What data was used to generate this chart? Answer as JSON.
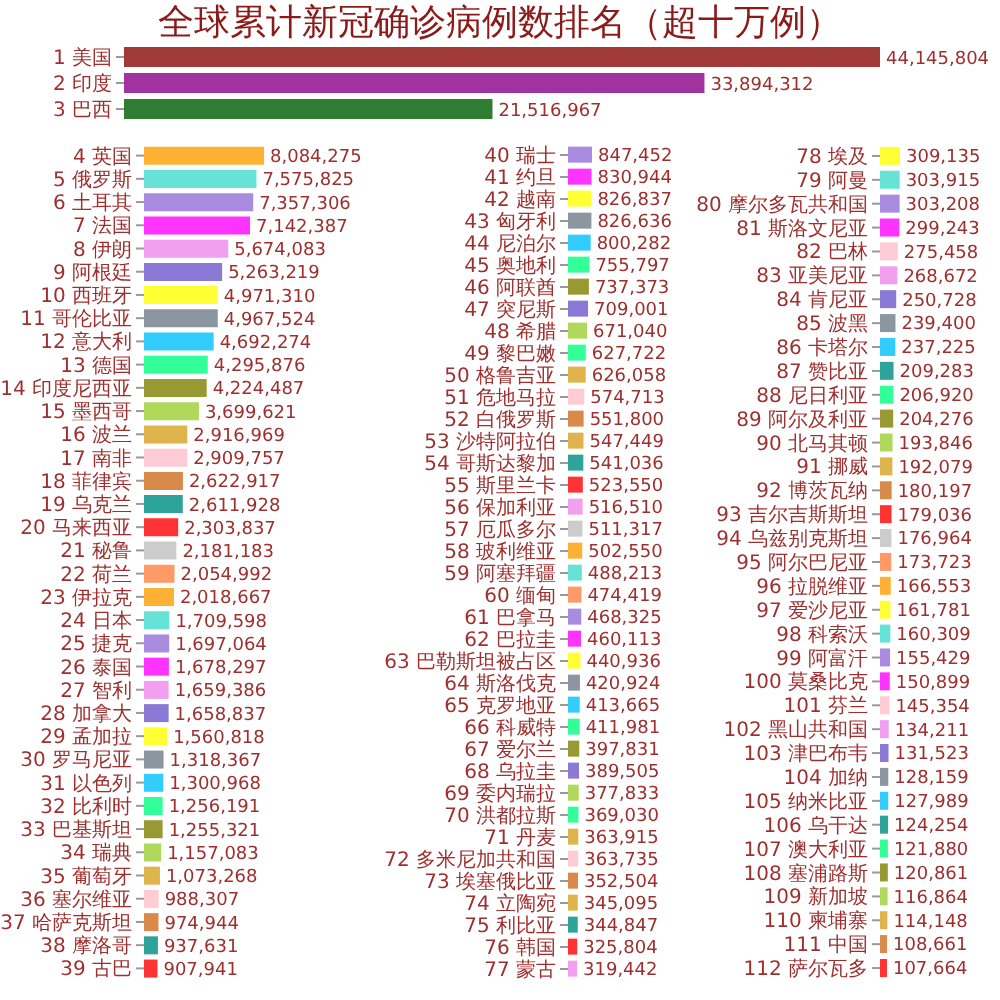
{
  "chart_data": [
    {
      "type": "bar",
      "orientation": "horizontal",
      "title": "全球累计新冠确诊病例数排名（超十万例）",
      "tick_labels": "y",
      "categories": [
        "1 美国",
        "2 印度",
        "3 巴西"
      ],
      "values": [
        44145804,
        33894312,
        21516967
      ],
      "value_labels": [
        "44,145,804",
        "33,894,312",
        "21,516,967"
      ],
      "colors": [
        "#a33a3a",
        "#a033a0",
        "#2e7d32"
      ]
    },
    {
      "type": "bar",
      "orientation": "horizontal",
      "tick_labels": "y",
      "categories": [
        "4 英国",
        "5 俄罗斯",
        "6 土耳其",
        "7 法国",
        "8 伊朗",
        "9 阿根廷",
        "10 西班牙",
        "11 哥伦比亚",
        "12 意大利",
        "13 德国",
        "14 印度尼西亚",
        "15 墨西哥",
        "16 波兰",
        "17 南非",
        "18 菲律宾",
        "19 乌克兰",
        "20 马来西亚",
        "21 秘鲁",
        "22 荷兰",
        "23 伊拉克",
        "24 日本",
        "25 捷克",
        "26 泰国",
        "27 智利",
        "28 加拿大",
        "29 孟加拉",
        "30 罗马尼亚",
        "31 以色列",
        "32 比利时",
        "33 巴基斯坦",
        "34 瑞典",
        "35 葡萄牙",
        "36 塞尔维亚",
        "37 哈萨克斯坦",
        "38 摩洛哥",
        "39 古巴"
      ],
      "values": [
        8084275,
        7575825,
        7357306,
        7142387,
        5674083,
        5263219,
        4971310,
        4967524,
        4692274,
        4295876,
        4224487,
        3699621,
        2916969,
        2909757,
        2622917,
        2611928,
        2303837,
        2181183,
        2054992,
        2018667,
        1709598,
        1697064,
        1678297,
        1659386,
        1658837,
        1560818,
        1318367,
        1300968,
        1256191,
        1255321,
        1157083,
        1073268,
        988307,
        974944,
        937631,
        907941
      ],
      "value_labels": [
        "8,084,275",
        "7,575,825",
        "7,357,306",
        "7,142,387",
        "5,674,083",
        "5,263,219",
        "4,971,310",
        "4,967,524",
        "4,692,274",
        "4,295,876",
        "4,224,487",
        "3,699,621",
        "2,916,969",
        "2,909,757",
        "2,622,917",
        "2,611,928",
        "2,303,837",
        "2,181,183",
        "2,054,992",
        "2,018,667",
        "1,709,598",
        "1,697,064",
        "1,678,297",
        "1,659,386",
        "1,658,837",
        "1,560,818",
        "1,318,367",
        "1,300,968",
        "1,256,191",
        "1,255,321",
        "1,157,083",
        "1,073,268",
        "988,307",
        "974,944",
        "937,631",
        "907,941"
      ],
      "colors": [
        "#ffb133",
        "#66e3d6",
        "#a98be0",
        "#ff33ff",
        "#f29ff0",
        "#8a7ad6",
        "#ffff33",
        "#8c96a0",
        "#33ccff",
        "#33ff99",
        "#999933",
        "#b0d85a",
        "#e0b44c",
        "#ffccd5",
        "#d98a4a",
        "#2ea39a",
        "#ff3333",
        "#cccccc",
        "#ff9966",
        "#ffb133",
        "#66e3d6",
        "#a98be0",
        "#ff33ff",
        "#f29ff0",
        "#8a7ad6",
        "#ffff33",
        "#8c96a0",
        "#33ccff",
        "#33ff99",
        "#999933",
        "#b0d85a",
        "#e0b44c",
        "#ffccd5",
        "#d98a4a",
        "#2ea39a",
        "#ff3333"
      ]
    },
    {
      "type": "bar",
      "orientation": "horizontal",
      "tick_labels": "y",
      "categories": [
        "40 瑞士",
        "41 约旦",
        "42 越南",
        "43 匈牙利",
        "44 尼泊尔",
        "45 奥地利",
        "46 阿联酋",
        "47 突尼斯",
        "48 希腊",
        "49 黎巴嫩",
        "50 格鲁吉亚",
        "51 危地马拉",
        "52 白俄罗斯",
        "53 沙特阿拉伯",
        "54 哥斯达黎加",
        "55 斯里兰卡",
        "56 保加利亚",
        "57 厄瓜多尔",
        "58 玻利维亚",
        "59 阿塞拜疆",
        "60 缅甸",
        "61 巴拿马",
        "62 巴拉圭",
        "63 巴勒斯坦被占区",
        "64 斯洛伐克",
        "65 克罗地亚",
        "66 科威特",
        "67 爱尔兰",
        "68 乌拉圭",
        "69 委内瑞拉",
        "70 洪都拉斯",
        "71 丹麦",
        "72 多米尼加共和国",
        "73 埃塞俄比亚",
        "74 立陶宛",
        "75 利比亚",
        "76 韩国",
        "77 蒙古"
      ],
      "values": [
        847452,
        830944,
        826837,
        826636,
        800282,
        755797,
        737373,
        709001,
        671040,
        627722,
        626058,
        574713,
        551800,
        547449,
        541036,
        523550,
        516510,
        511317,
        502550,
        488213,
        474419,
        468325,
        460113,
        440936,
        420924,
        413665,
        411981,
        397831,
        389505,
        377833,
        369030,
        363915,
        363735,
        352504,
        345095,
        344847,
        325804,
        319442
      ],
      "value_labels": [
        "847,452",
        "830,944",
        "826,837",
        "826,636",
        "800,282",
        "755,797",
        "737,373",
        "709,001",
        "671,040",
        "627,722",
        "626,058",
        "574,713",
        "551,800",
        "547,449",
        "541,036",
        "523,550",
        "516,510",
        "511,317",
        "502,550",
        "488,213",
        "474,419",
        "468,325",
        "460,113",
        "440,936",
        "420,924",
        "413,665",
        "411,981",
        "397,831",
        "389,505",
        "377,833",
        "369,030",
        "363,915",
        "363,735",
        "352,504",
        "345,095",
        "344,847",
        "325,804",
        "319,442"
      ],
      "colors": [
        "#a98be0",
        "#ff33ff",
        "#ffff33",
        "#8c96a0",
        "#33ccff",
        "#33ff99",
        "#999933",
        "#8a7ad6",
        "#b0d85a",
        "#33ff99",
        "#e0b44c",
        "#ffccd5",
        "#d98a4a",
        "#e0b44c",
        "#2ea39a",
        "#ff3333",
        "#f29ff0",
        "#cccccc",
        "#ffb133",
        "#66e3d6",
        "#ff9966",
        "#a98be0",
        "#ff33ff",
        "#ffff33",
        "#8c96a0",
        "#33ccff",
        "#33ff99",
        "#999933",
        "#8a7ad6",
        "#b0d85a",
        "#33ff99",
        "#e0b44c",
        "#ffccd5",
        "#d98a4a",
        "#e0b44c",
        "#2ea39a",
        "#ff3333",
        "#f29ff0"
      ]
    },
    {
      "type": "bar",
      "orientation": "horizontal",
      "tick_labels": "y",
      "categories": [
        "78 埃及",
        "79 阿曼",
        "80 摩尔多瓦共和国",
        "81 斯洛文尼亚",
        "82 巴林",
        "83 亚美尼亚",
        "84 肯尼亚",
        "85 波黑",
        "86 卡塔尔",
        "87 赞比亚",
        "88 尼日利亚",
        "89 阿尔及利亚",
        "90 北马其顿",
        "91 挪威",
        "92 博茨瓦纳",
        "93 吉尔吉斯斯坦",
        "94 乌兹别克斯坦",
        "95 阿尔巴尼亚",
        "96 拉脱维亚",
        "97 爱沙尼亚",
        "98 科索沃",
        "99 阿富汗",
        "100 莫桑比克",
        "101 芬兰",
        "102 黑山共和国",
        "103 津巴布韦",
        "104 加纳",
        "105 纳米比亚",
        "106 乌干达",
        "107 澳大利亚",
        "108 塞浦路斯",
        "109 新加坡",
        "110 柬埔寨",
        "111 中国",
        "112 萨尔瓦多"
      ],
      "values": [
        309135,
        303915,
        303208,
        299243,
        275458,
        268672,
        250728,
        239400,
        237225,
        209283,
        206920,
        204276,
        193846,
        192079,
        180197,
        179036,
        176964,
        173723,
        166553,
        161781,
        160309,
        155429,
        150899,
        145354,
        134211,
        131523,
        128159,
        127989,
        124254,
        121880,
        120861,
        116864,
        114148,
        108661,
        107664
      ],
      "value_labels": [
        "309,135",
        "303,915",
        "303,208",
        "299,243",
        "275,458",
        "268,672",
        "250,728",
        "239,400",
        "237,225",
        "209,283",
        "206,920",
        "204,276",
        "193,846",
        "192,079",
        "180,197",
        "179,036",
        "176,964",
        "173,723",
        "166,553",
        "161,781",
        "160,309",
        "155,429",
        "150,899",
        "145,354",
        "134,211",
        "131,523",
        "128,159",
        "127,989",
        "124,254",
        "121,880",
        "120,861",
        "116,864",
        "114,148",
        "108,661",
        "107,664"
      ],
      "colors": [
        "#ffff33",
        "#66e3d6",
        "#a98be0",
        "#ff33ff",
        "#ffccd5",
        "#f29ff0",
        "#8a7ad6",
        "#8c96a0",
        "#33ccff",
        "#2ea39a",
        "#33ff99",
        "#999933",
        "#b0d85a",
        "#e0b44c",
        "#d98a4a",
        "#ff3333",
        "#cccccc",
        "#ff9966",
        "#ffb133",
        "#ffff33",
        "#66e3d6",
        "#a98be0",
        "#ff33ff",
        "#ffccd5",
        "#f29ff0",
        "#8a7ad6",
        "#8c96a0",
        "#33ccff",
        "#2ea39a",
        "#33ff99",
        "#999933",
        "#b0d85a",
        "#e0b44c",
        "#d98a4a",
        "#ff3333"
      ]
    }
  ]
}
